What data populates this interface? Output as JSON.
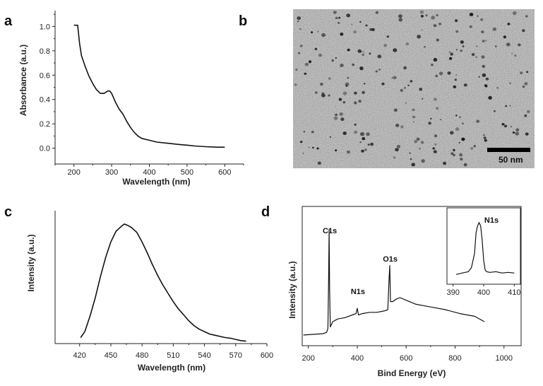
{
  "figure": {
    "panel_a": "a",
    "panel_b": "b",
    "panel_c": "c",
    "panel_d": "d"
  },
  "tem": {
    "scale_label": "50 nm"
  },
  "chart_data": [
    {
      "id": "a",
      "type": "line",
      "title": "",
      "xlabel": "Wavelength (nm)",
      "ylabel": "Absorbance (a.u.)",
      "xlim": [
        150,
        650
      ],
      "ylim": [
        -0.13,
        1.13
      ],
      "xticks": [
        200,
        300,
        400,
        500,
        600
      ],
      "yticks": [
        0.0,
        0.2,
        0.4,
        0.6,
        0.8,
        1.0
      ],
      "ytick_labels": [
        "0.0",
        "0.2",
        "0.4",
        "0.6",
        "0.8",
        "1.0"
      ],
      "grid": false,
      "x": [
        200,
        210,
        215,
        220,
        230,
        240,
        250,
        260,
        270,
        280,
        290,
        295,
        300,
        310,
        320,
        330,
        340,
        350,
        360,
        370,
        380,
        400,
        420,
        450,
        480,
        500,
        520,
        550,
        580,
        600
      ],
      "y": [
        1.01,
        1.01,
        0.86,
        0.76,
        0.67,
        0.59,
        0.53,
        0.48,
        0.45,
        0.45,
        0.47,
        0.47,
        0.45,
        0.38,
        0.32,
        0.28,
        0.22,
        0.17,
        0.13,
        0.1,
        0.08,
        0.065,
        0.05,
        0.04,
        0.03,
        0.025,
        0.018,
        0.012,
        0.008,
        0.008
      ]
    },
    {
      "id": "c",
      "type": "line",
      "title": "",
      "xlabel": "Wavelength (nm)",
      "ylabel": "Intensity (a.u.)",
      "xlim": [
        410,
        600
      ],
      "ylim": [
        0,
        1.1
      ],
      "xticks": [
        420,
        450,
        480,
        510,
        540,
        570,
        600
      ],
      "yticks": [],
      "grid": false,
      "x": [
        421,
        425,
        430,
        435,
        440,
        445,
        450,
        455,
        460,
        463,
        466,
        470,
        475,
        480,
        485,
        490,
        495,
        500,
        505,
        510,
        515,
        520,
        525,
        530,
        535,
        540,
        545,
        550,
        555,
        560,
        565,
        570,
        575,
        580
      ],
      "y": [
        0.05,
        0.1,
        0.23,
        0.38,
        0.56,
        0.72,
        0.85,
        0.94,
        0.98,
        1.0,
        0.99,
        0.97,
        0.93,
        0.85,
        0.76,
        0.66,
        0.57,
        0.49,
        0.42,
        0.35,
        0.29,
        0.24,
        0.19,
        0.15,
        0.12,
        0.1,
        0.08,
        0.07,
        0.06,
        0.05,
        0.045,
        0.035,
        0.025,
        0.02
      ]
    },
    {
      "id": "d",
      "type": "line",
      "title": "",
      "xlabel": "Bind Energy (eV)",
      "ylabel": "Intensity (a.u.)",
      "xlim": [
        175,
        1070
      ],
      "ylim": [
        0,
        100
      ],
      "xticks": [
        200,
        400,
        600,
        800,
        1000
      ],
      "yticks": [],
      "grid": false,
      "annotations": [
        {
          "text": "C1s",
          "x": 285
        },
        {
          "text": "N1s",
          "x": 400
        },
        {
          "text": "O1s",
          "x": 532
        }
      ],
      "x": [
        180,
        260,
        275,
        280,
        283,
        285,
        287,
        290,
        300,
        320,
        350,
        380,
        395,
        400,
        405,
        420,
        450,
        480,
        510,
        525,
        530,
        533,
        536,
        545,
        560,
        575,
        600,
        640,
        700,
        760,
        820,
        880,
        920
      ],
      "y": [
        8,
        9,
        10,
        13,
        50,
        87,
        42,
        14,
        18,
        20,
        21,
        23,
        24,
        28,
        23,
        24,
        25,
        25,
        26,
        27,
        50,
        60,
        33,
        33,
        35,
        36,
        34,
        31,
        29,
        27,
        24,
        22,
        18
      ]
    },
    {
      "id": "d-inset",
      "type": "line",
      "title": "N1s",
      "xlabel": "",
      "ylabel": "",
      "xlim": [
        388,
        412
      ],
      "ylim": [
        0,
        100
      ],
      "xticks": [
        390,
        400,
        410
      ],
      "yticks": [],
      "grid": false,
      "x": [
        391,
        393,
        395,
        396,
        397,
        397.5,
        398,
        398.5,
        399,
        399.5,
        400,
        400.5,
        401,
        402,
        404,
        406,
        408,
        410
      ],
      "y": [
        10,
        12,
        14,
        20,
        40,
        70,
        80,
        85,
        80,
        60,
        30,
        16,
        14,
        13,
        14,
        12,
        13,
        12
      ]
    }
  ]
}
